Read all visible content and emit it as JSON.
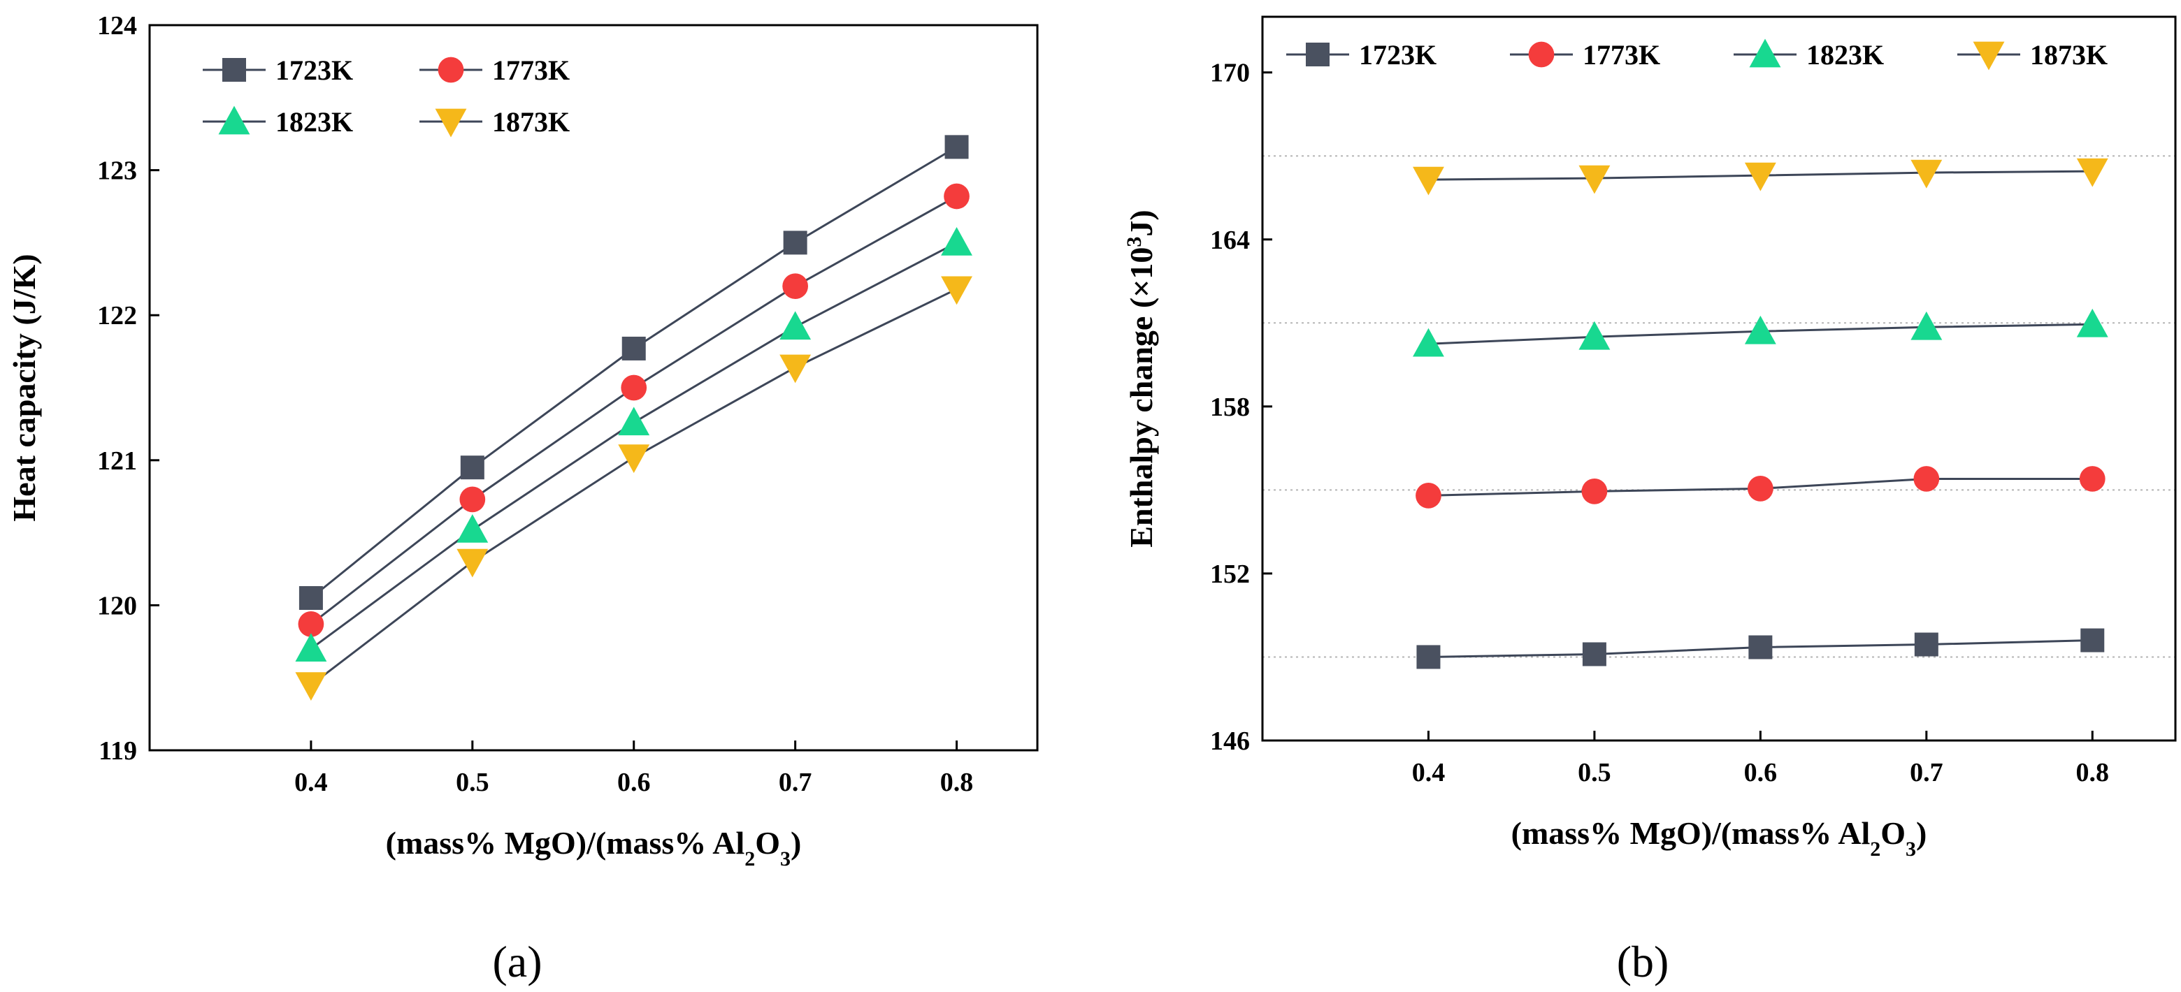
{
  "chart_data": [
    {
      "type": "line",
      "panel_label": "(a)",
      "title": "",
      "xlabel": "(mass% MgO)/(mass% Al2O3)",
      "ylabel": "Heat capacity (J/K)",
      "x": [
        0.4,
        0.5,
        0.6,
        0.7,
        0.8
      ],
      "xticks": [
        "0.4",
        "0.5",
        "0.6",
        "0.7",
        "0.8"
      ],
      "xlim": [
        0.3,
        0.85
      ],
      "ylim": [
        119,
        124
      ],
      "yticks": [
        "119",
        "120",
        "121",
        "122",
        "123",
        "124"
      ],
      "grid": false,
      "legend_position": "top-left",
      "series": [
        {
          "name": "1723K",
          "marker": "square",
          "color": "#4a5160",
          "values": [
            120.05,
            120.95,
            121.77,
            122.5,
            123.16
          ]
        },
        {
          "name": "1773K",
          "marker": "circle",
          "color": "#f43c3c",
          "values": [
            119.87,
            120.73,
            121.5,
            122.2,
            122.82
          ]
        },
        {
          "name": "1823K",
          "marker": "triangle-up",
          "color": "#18d890",
          "values": [
            119.7,
            120.52,
            121.26,
            121.92,
            122.5
          ]
        },
        {
          "name": "1873K",
          "marker": "triangle-down",
          "color": "#f5b81a",
          "values": [
            119.45,
            120.3,
            121.02,
            121.64,
            122.18
          ]
        }
      ]
    },
    {
      "type": "line",
      "panel_label": "(b)",
      "title": "",
      "xlabel": "(mass% MgO)/(mass% Al2O3)",
      "ylabel": "Enthalpy change (×10³J)",
      "x": [
        0.4,
        0.5,
        0.6,
        0.7,
        0.8
      ],
      "xticks": [
        "0.4",
        "0.5",
        "0.6",
        "0.7",
        "0.8"
      ],
      "xlim": [
        0.3,
        0.85
      ],
      "ylim": [
        146,
        172
      ],
      "yticks": [
        "146",
        "152",
        "158",
        "164",
        "170"
      ],
      "grid": true,
      "gridlines": [
        149,
        155,
        161,
        167
      ],
      "legend_position": "top",
      "series": [
        {
          "name": "1723K",
          "marker": "square",
          "color": "#4a5160",
          "values": [
            149.0,
            149.1,
            149.35,
            149.45,
            149.6
          ]
        },
        {
          "name": "1773K",
          "marker": "circle",
          "color": "#f43c3c",
          "values": [
            154.8,
            154.95,
            155.05,
            155.4,
            155.4
          ]
        },
        {
          "name": "1823K",
          "marker": "triangle-up",
          "color": "#18d890",
          "values": [
            160.25,
            160.5,
            160.7,
            160.85,
            160.95
          ]
        },
        {
          "name": "1873K",
          "marker": "triangle-down",
          "color": "#f5b81a",
          "values": [
            166.15,
            166.2,
            166.3,
            166.4,
            166.45
          ]
        }
      ]
    }
  ]
}
